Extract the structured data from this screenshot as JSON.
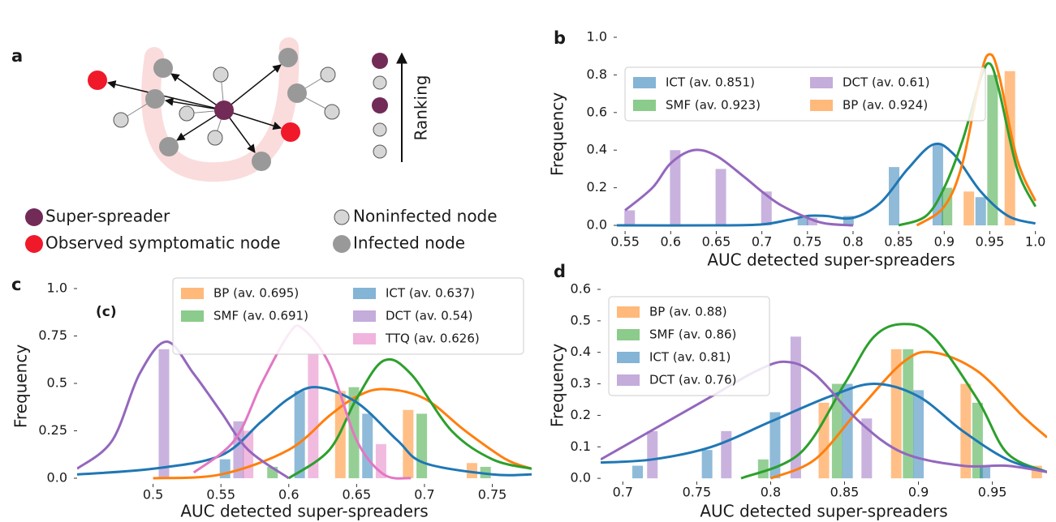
{
  "diagram": {
    "label": "a",
    "ranking_label": "Ranking",
    "legend": [
      "Super-spreader",
      "Observed symptomatic node",
      "Noninfected node",
      "Infected node"
    ]
  },
  "chart_data": [
    {
      "type": "density",
      "panel": "b",
      "xlabel": "AUC detected super-spreaders",
      "ylabel": "Frequency",
      "xlim": [
        0.541,
        1.011
      ],
      "ylim": [
        -0.03,
        1.0
      ],
      "xticks": [
        0.55,
        0.6,
        0.65,
        0.7,
        0.75,
        0.8,
        0.85,
        0.9,
        0.95,
        {
          "value": 1.0,
          "label": "1.0"
        }
      ],
      "yticks": [
        {
          "value": 0.0,
          "label": "0.0"
        },
        0.2,
        0.4,
        0.6,
        0.8,
        {
          "value": 1.0,
          "label": "1.0"
        }
      ],
      "legend": "upper left",
      "legend_columns": 2,
      "series": [
        {
          "name": "ICT (av. 0.851)",
          "color": "#1f77b4",
          "bars": {
            "x": [
              0.745,
              0.795,
              0.845,
              0.893,
              0.94
            ],
            "values": [
              0.04,
              0.05,
              0.31,
              0.43,
              0.15
            ]
          },
          "curve": {
            "x": [
              0.541,
              0.65,
              0.7,
              0.73,
              0.75,
              0.77,
              0.8,
              0.83,
              0.86,
              0.888,
              0.91,
              0.94,
              0.97,
              1.0
            ],
            "values": [
              0,
              0,
              0.005,
              0.03,
              0.05,
              0.05,
              0.04,
              0.12,
              0.3,
              0.43,
              0.38,
              0.18,
              0.05,
              0.01
            ]
          }
        },
        {
          "name": "SMF (av. 0.923)",
          "color": "#2ca02c",
          "bars": {
            "x": [
              0.903,
              0.953
            ],
            "values": [
              0.2,
              0.8
            ]
          },
          "curve": {
            "x": [
              0.85,
              0.88,
              0.9,
              0.92,
              0.94,
              0.95,
              0.96,
              0.98,
              1.0
            ],
            "values": [
              0,
              0.05,
              0.2,
              0.45,
              0.78,
              0.86,
              0.72,
              0.3,
              0.1
            ]
          }
        },
        {
          "name": "DCT (av. 0.61)",
          "color": "#9467bd",
          "bars": {
            "x": [
              0.555,
              0.605,
              0.655,
              0.705,
              0.755
            ],
            "values": [
              0.08,
              0.4,
              0.3,
              0.18,
              0.04
            ]
          },
          "curve": {
            "x": [
              0.55,
              0.58,
              0.6,
              0.625,
              0.65,
              0.68,
              0.7,
              0.72,
              0.75,
              0.77,
              0.8
            ],
            "values": [
              0.08,
              0.2,
              0.33,
              0.4,
              0.37,
              0.26,
              0.18,
              0.11,
              0.04,
              0.01,
              0
            ]
          }
        },
        {
          "name": "BP (av. 0.924)",
          "color": "#ff7f0e",
          "bars": {
            "x": [
              0.927,
              0.972
            ],
            "values": [
              0.18,
              0.82
            ]
          },
          "curve": {
            "x": [
              0.87,
              0.9,
              0.92,
              0.94,
              0.95,
              0.96,
              0.98,
              1.0
            ],
            "values": [
              0,
              0.1,
              0.33,
              0.8,
              0.91,
              0.8,
              0.35,
              0.13
            ]
          }
        }
      ]
    },
    {
      "type": "density",
      "panel": "c",
      "annotation": "(c)",
      "xlabel": "AUC detected super-spreaders",
      "ylabel": "Frequency",
      "xlim": [
        0.444,
        0.779
      ],
      "ylim": [
        -0.03,
        1.0
      ],
      "xticks": [
        0.5,
        0.55,
        0.6,
        0.65,
        0.7,
        0.75
      ],
      "yticks": [
        {
          "value": 0.0,
          "label": "0.0"
        },
        0.25,
        0.5,
        0.75,
        {
          "value": 1.0,
          "label": "1.0"
        }
      ],
      "legend": "upper right",
      "legend_columns": 2,
      "series": [
        {
          "name": "BP (av. 0.695)",
          "color": "#ff7f0e",
          "bars": {
            "x": [
              0.638,
              0.688,
              0.735
            ],
            "values": [
              0.46,
              0.36,
              0.08
            ]
          },
          "curve": {
            "x": [
              0.5,
              0.55,
              0.6,
              0.63,
              0.65,
              0.67,
              0.7,
              0.73,
              0.76,
              0.779
            ],
            "values": [
              0,
              0.02,
              0.15,
              0.33,
              0.43,
              0.47,
              0.42,
              0.25,
              0.1,
              0.05
            ]
          }
        },
        {
          "name": "SMF (av. 0.691)",
          "color": "#2ca02c",
          "bars": {
            "x": [
              0.588,
              0.648,
              0.698,
              0.745
            ],
            "values": [
              0.06,
              0.48,
              0.34,
              0.06
            ]
          },
          "curve": {
            "x": [
              0.6,
              0.63,
              0.65,
              0.67,
              0.69,
              0.72,
              0.75,
              0.779
            ],
            "values": [
              0,
              0.15,
              0.42,
              0.62,
              0.55,
              0.25,
              0.1,
              0.05
            ]
          }
        },
        {
          "name": "ICT (av. 0.637)",
          "color": "#1f77b4",
          "bars": {
            "x": [
              0.553,
              0.608,
              0.658
            ],
            "values": [
              0.1,
              0.46,
              0.34
            ]
          },
          "curve": {
            "x": [
              0.444,
              0.5,
              0.55,
              0.58,
              0.6,
              0.62,
              0.65,
              0.68,
              0.7,
              0.75,
              0.779
            ],
            "values": [
              0.02,
              0.05,
              0.12,
              0.3,
              0.42,
              0.48,
              0.4,
              0.2,
              0.08,
              0.02,
              0.02
            ]
          }
        },
        {
          "name": "DCT (av. 0.54)",
          "color": "#9467bd",
          "bars": {
            "x": [
              0.508,
              0.563
            ],
            "values": [
              0.68,
              0.3
            ]
          },
          "curve": {
            "x": [
              0.444,
              0.47,
              0.49,
              0.51,
              0.53,
              0.55,
              0.57,
              0.6
            ],
            "values": [
              0.05,
              0.2,
              0.55,
              0.72,
              0.55,
              0.35,
              0.15,
              0
            ]
          }
        },
        {
          "name": "TTQ (av. 0.626)",
          "color": "#e377c2",
          "bars": {
            "x": [
              0.57,
              0.618,
              0.668
            ],
            "values": [
              0.25,
              0.66,
              0.18
            ]
          },
          "curve": {
            "x": [
              0.53,
              0.56,
              0.58,
              0.6,
              0.61,
              0.63,
              0.65,
              0.67,
              0.69
            ],
            "values": [
              0.03,
              0.2,
              0.5,
              0.76,
              0.79,
              0.6,
              0.2,
              0.02,
              0
            ]
          }
        }
      ]
    },
    {
      "type": "density",
      "panel": "d",
      "xlabel": "AUC detected super-spreaders",
      "ylabel": "Frequency",
      "xlim": [
        0.685,
        0.987
      ],
      "ylim": [
        -0.01,
        0.6
      ],
      "xticks": [
        0.7,
        0.75,
        0.8,
        0.85,
        0.9,
        0.95
      ],
      "yticks": [
        {
          "value": 0.0,
          "label": "0.0"
        },
        0.1,
        0.2,
        0.3,
        0.4,
        0.5,
        0.6
      ],
      "legend": "upper left",
      "legend_columns": 1,
      "series": [
        {
          "name": "BP (av. 0.88)",
          "color": "#ff7f0e",
          "bars": {
            "x": [
              0.836,
              0.885,
              0.932,
              0.98
            ],
            "values": [
              0.24,
              0.41,
              0.3,
              0.04
            ]
          },
          "curve": {
            "x": [
              0.8,
              0.83,
              0.86,
              0.89,
              0.91,
              0.94,
              0.97,
              0.987
            ],
            "values": [
              0,
              0.06,
              0.22,
              0.37,
              0.4,
              0.34,
              0.2,
              0.13
            ]
          }
        },
        {
          "name": "SMF (av. 0.86)",
          "color": "#2ca02c",
          "bars": {
            "x": [
              0.795,
              0.845,
              0.893,
              0.94
            ],
            "values": [
              0.06,
              0.3,
              0.41,
              0.24
            ]
          },
          "curve": {
            "x": [
              0.78,
              0.82,
              0.85,
              0.87,
              0.89,
              0.91,
              0.94,
              0.96,
              0.987
            ],
            "values": [
              0,
              0.08,
              0.3,
              0.45,
              0.49,
              0.45,
              0.25,
              0.08,
              0.02
            ]
          }
        },
        {
          "name": "ICT (av. 0.81)",
          "color": "#1f77b4",
          "bars": {
            "x": [
              0.71,
              0.757,
              0.803,
              0.852,
              0.9,
              0.945
            ],
            "values": [
              0.04,
              0.09,
              0.21,
              0.3,
              0.28,
              0.04
            ]
          },
          "curve": {
            "x": [
              0.685,
              0.72,
              0.76,
              0.8,
              0.84,
              0.87,
              0.9,
              0.93,
              0.96,
              0.987
            ],
            "values": [
              0.05,
              0.06,
              0.1,
              0.18,
              0.26,
              0.3,
              0.26,
              0.15,
              0.06,
              0.02
            ]
          }
        },
        {
          "name": "DCT (av. 0.76)",
          "color": "#9467bd",
          "bars": {
            "x": [
              0.68,
              0.72,
              0.77,
              0.817,
              0.865
            ],
            "values": [
              0.02,
              0.15,
              0.15,
              0.45,
              0.19
            ]
          },
          "curve": {
            "x": [
              0.685,
              0.7,
              0.73,
              0.76,
              0.79,
              0.81,
              0.83,
              0.86,
              0.89,
              0.93,
              0.96,
              0.987
            ],
            "values": [
              0.06,
              0.1,
              0.18,
              0.26,
              0.34,
              0.37,
              0.33,
              0.18,
              0.08,
              0.04,
              0.04,
              0.02
            ]
          }
        }
      ]
    }
  ]
}
